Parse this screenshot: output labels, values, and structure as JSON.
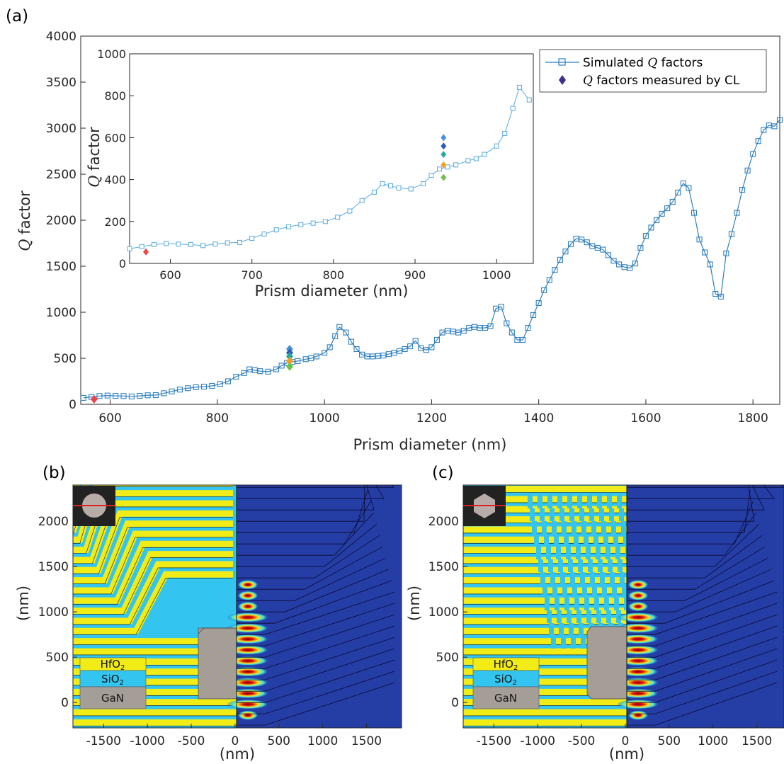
{
  "panel_labels": {
    "a": "(a)",
    "b": "(b)",
    "c": "(c)"
  },
  "colors": {
    "simulated": "#2f7fc0",
    "inset_sim": "#5aaae0",
    "measured_legend": "#3b2f8f",
    "hfo2": "#f2ec16",
    "sio2": "#33c5ef",
    "gan": "#a59e97",
    "field_bg": "#253ea6"
  },
  "legend": {
    "simulated_label": "Simulated",
    "simulated_q": "Q",
    "simulated_rest": "factors",
    "measured_q": "Q",
    "measured_rest": "factors measured by CL"
  },
  "chart_data": [
    {
      "type": "line",
      "panel": "(a)",
      "xlabel": "Prism diameter (nm)",
      "ylabel_q": "Q",
      "ylabel_rest": "factor",
      "xlim": [
        545,
        1850
      ],
      "ylim": [
        0,
        4000
      ],
      "xticks": [
        "600",
        "800",
        "1000",
        "1200",
        "1400",
        "1600",
        "1800"
      ],
      "yticks": [
        "0",
        "500",
        "1000",
        "1500",
        "2000",
        "2500",
        "3000",
        "3500",
        "4000"
      ],
      "series": [
        {
          "name": "Simulated Q factors",
          "points": [
            [
              550,
              70
            ],
            [
              565,
              80
            ],
            [
              580,
              90
            ],
            [
              595,
              95
            ],
            [
              610,
              92
            ],
            [
              625,
              90
            ],
            [
              640,
              85
            ],
            [
              655,
              92
            ],
            [
              670,
              98
            ],
            [
              685,
              100
            ],
            [
              700,
              120
            ],
            [
              715,
              140
            ],
            [
              730,
              160
            ],
            [
              745,
              175
            ],
            [
              760,
              185
            ],
            [
              775,
              192
            ],
            [
              790,
              200
            ],
            [
              805,
              220
            ],
            [
              820,
              250
            ],
            [
              835,
              300
            ],
            [
              850,
              340
            ],
            [
              860,
              380
            ],
            [
              870,
              370
            ],
            [
              880,
              360
            ],
            [
              895,
              355
            ],
            [
              910,
              380
            ],
            [
              920,
              420
            ],
            [
              930,
              450
            ],
            [
              940,
              460
            ],
            [
              950,
              470
            ],
            [
              965,
              490
            ],
            [
              975,
              500
            ],
            [
              985,
              520
            ],
            [
              1000,
              560
            ],
            [
              1010,
              620
            ],
            [
              1020,
              740
            ],
            [
              1028,
              840
            ],
            [
              1040,
              780
            ],
            [
              1050,
              680
            ],
            [
              1060,
              600
            ],
            [
              1070,
              540
            ],
            [
              1080,
              520
            ],
            [
              1090,
              520
            ],
            [
              1100,
              525
            ],
            [
              1110,
              530
            ],
            [
              1120,
              545
            ],
            [
              1130,
              560
            ],
            [
              1140,
              580
            ],
            [
              1150,
              600
            ],
            [
              1160,
              630
            ],
            [
              1170,
              690
            ],
            [
              1180,
              610
            ],
            [
              1190,
              590
            ],
            [
              1200,
              620
            ],
            [
              1210,
              700
            ],
            [
              1220,
              780
            ],
            [
              1230,
              800
            ],
            [
              1240,
              790
            ],
            [
              1250,
              780
            ],
            [
              1260,
              800
            ],
            [
              1270,
              830
            ],
            [
              1280,
              840
            ],
            [
              1290,
              830
            ],
            [
              1300,
              830
            ],
            [
              1310,
              850
            ],
            [
              1320,
              1040
            ],
            [
              1330,
              1060
            ],
            [
              1340,
              880
            ],
            [
              1350,
              780
            ],
            [
              1360,
              700
            ],
            [
              1370,
              700
            ],
            [
              1380,
              830
            ],
            [
              1390,
              970
            ],
            [
              1400,
              1100
            ],
            [
              1410,
              1240
            ],
            [
              1420,
              1350
            ],
            [
              1430,
              1460
            ],
            [
              1440,
              1570
            ],
            [
              1450,
              1660
            ],
            [
              1460,
              1740
            ],
            [
              1470,
              1800
            ],
            [
              1480,
              1790
            ],
            [
              1490,
              1760
            ],
            [
              1500,
              1720
            ],
            [
              1510,
              1700
            ],
            [
              1520,
              1680
            ],
            [
              1530,
              1620
            ],
            [
              1540,
              1560
            ],
            [
              1550,
              1520
            ],
            [
              1560,
              1490
            ],
            [
              1570,
              1480
            ],
            [
              1580,
              1530
            ],
            [
              1590,
              1700
            ],
            [
              1600,
              1830
            ],
            [
              1610,
              1920
            ],
            [
              1620,
              2000
            ],
            [
              1630,
              2070
            ],
            [
              1640,
              2130
            ],
            [
              1650,
              2200
            ],
            [
              1660,
              2300
            ],
            [
              1670,
              2400
            ],
            [
              1680,
              2350
            ],
            [
              1690,
              2080
            ],
            [
              1700,
              1790
            ],
            [
              1710,
              1650
            ],
            [
              1720,
              1520
            ],
            [
              1730,
              1200
            ],
            [
              1740,
              1170
            ],
            [
              1750,
              1640
            ],
            [
              1760,
              1850
            ],
            [
              1770,
              2080
            ],
            [
              1780,
              2330
            ],
            [
              1790,
              2540
            ],
            [
              1800,
              2720
            ],
            [
              1810,
              2860
            ],
            [
              1820,
              2980
            ],
            [
              1830,
              3030
            ],
            [
              1840,
              3020
            ],
            [
              1850,
              3090
            ]
          ]
        },
        {
          "name": "Q factors measured by CL",
          "points": [
            [
              570,
              55,
              "#ee4444"
            ],
            [
              935,
              600,
              "#4a90d9"
            ],
            [
              935,
              560,
              "#2b5db8"
            ],
            [
              935,
              520,
              "#2aa8a0"
            ],
            [
              935,
              470,
              "#f0a020"
            ],
            [
              935,
              410,
              "#6dc24e"
            ]
          ]
        }
      ]
    },
    {
      "type": "line",
      "panel": "(a) inset",
      "xlabel": "Prism diameter (nm)",
      "ylabel_q": "Q",
      "ylabel_rest": "factor",
      "xlim": [
        550,
        1045
      ],
      "ylim": [
        0,
        1000
      ],
      "xticks": [
        "600",
        "700",
        "800",
        "900",
        "1000"
      ],
      "yticks": [
        "0",
        "200",
        "400",
        "600",
        "800",
        "1000"
      ]
    },
    {
      "type": "heatmap",
      "panel": "(b)",
      "xlabel": "(nm)",
      "ylabel": "(nm)",
      "xticks": [
        "-1500",
        "-1000",
        "-500",
        "0",
        "500",
        "1000",
        "1500"
      ],
      "yticks": [
        "0",
        "500",
        "1000",
        "1500",
        "2000"
      ],
      "xlim": [
        -1850,
        1900
      ],
      "ylim": [
        -280,
        2400
      ],
      "materials": [
        "HfO2",
        "SiO2",
        "GaN"
      ]
    },
    {
      "type": "heatmap",
      "panel": "(c)",
      "xlabel": "(nm)",
      "ylabel": "(nm)",
      "xticks": [
        "-1500",
        "-1000",
        "-500",
        "0",
        "500",
        "1000",
        "1500"
      ],
      "yticks": [
        "0",
        "500",
        "1000",
        "1500",
        "2000"
      ],
      "xlim": [
        -1850,
        1810
      ],
      "ylim": [
        -280,
        2400
      ],
      "materials": [
        "HfO2",
        "SiO2",
        "GaN"
      ]
    }
  ]
}
